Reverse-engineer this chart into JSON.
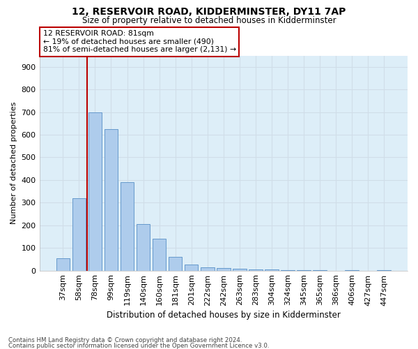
{
  "title1": "12, RESERVOIR ROAD, KIDDERMINSTER, DY11 7AP",
  "title2": "Size of property relative to detached houses in Kidderminster",
  "xlabel": "Distribution of detached houses by size in Kidderminster",
  "ylabel": "Number of detached properties",
  "footnote1": "Contains HM Land Registry data © Crown copyright and database right 2024.",
  "footnote2": "Contains public sector information licensed under the Open Government Licence v3.0.",
  "annotation_line1": "12 RESERVOIR ROAD: 81sqm",
  "annotation_line2": "← 19% of detached houses are smaller (490)",
  "annotation_line3": "81% of semi-detached houses are larger (2,131) →",
  "bar_labels": [
    "37sqm",
    "58sqm",
    "78sqm",
    "99sqm",
    "119sqm",
    "140sqm",
    "160sqm",
    "181sqm",
    "201sqm",
    "222sqm",
    "242sqm",
    "263sqm",
    "283sqm",
    "304sqm",
    "324sqm",
    "345sqm",
    "365sqm",
    "386sqm",
    "406sqm",
    "427sqm",
    "447sqm"
  ],
  "bar_values": [
    55,
    320,
    700,
    625,
    390,
    205,
    140,
    60,
    25,
    15,
    12,
    8,
    5,
    4,
    3,
    2,
    2,
    0,
    1,
    0,
    2
  ],
  "vline_x": 1.5,
  "bar_color": "#aeccec",
  "bar_edgecolor": "#6699cc",
  "vline_color": "#bb0000",
  "annotation_box_edgecolor": "#bb0000",
  "grid_color": "#d0dde8",
  "background_color": "#ddeef8",
  "ylim": [
    0,
    950
  ],
  "yticks": [
    0,
    100,
    200,
    300,
    400,
    500,
    600,
    700,
    800,
    900
  ]
}
